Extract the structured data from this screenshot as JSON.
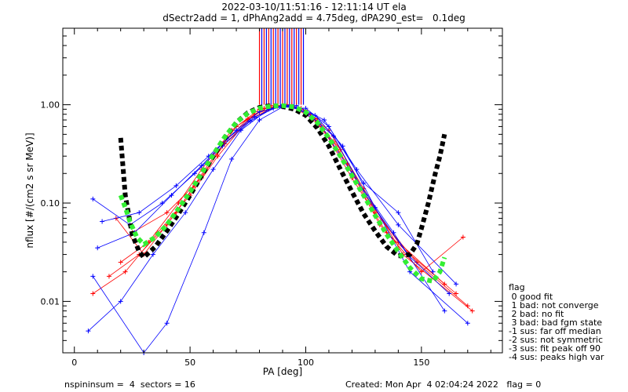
{
  "header": {
    "title_line1": "2022-03-10/11:51:16 - 12:11:14 UT ela",
    "title_line2": "dSectr2add = 1, dPhAng2add = 4.75deg, dPA290_est=   0.1deg"
  },
  "footer": {
    "left": "nspininsum =  4  sectors = 16",
    "right": "Created: Mon Apr  4 02:04:24 2022   flag = 0"
  },
  "legend": {
    "title": "flag",
    "items": [
      " 0 good fit",
      " 1 bad: not converge",
      " 2 bad: no fit",
      " 3 bad: bad fgm state",
      "-1 sus: far off median",
      "-2 sus: not symmetric",
      "-3 sus: fit peak off 90",
      "-4 sus: peaks high var"
    ]
  },
  "chart_data": {
    "type": "line",
    "xlabel": "PA [deg]",
    "ylabel": "nflux [#/(cm2 s sr MeV)]",
    "xlim": [
      -5,
      185
    ],
    "ylim": [
      0.003,
      6
    ],
    "yscale": "log",
    "x_ticks": [
      0,
      50,
      100,
      150
    ],
    "x_tick_labels": [
      "0",
      "50",
      "100",
      "150"
    ],
    "y_ticks": [
      0.01,
      0.1,
      1.0
    ],
    "y_tick_labels": [
      "0.01",
      "0.10",
      "1.00"
    ],
    "series": [
      {
        "color": "#ff0000",
        "style": "thin-line-with-plus",
        "lines": [
          {
            "x": [
              25,
              40,
              55,
              65,
              75,
              85,
              95,
              105,
              120,
              135,
              145,
              165
            ],
            "y": [
              0.05,
              0.08,
              0.18,
              0.42,
              0.72,
              0.98,
              0.95,
              0.72,
              0.18,
              0.05,
              0.03,
              0.012
            ]
          },
          {
            "x": [
              20,
              32,
              45,
              55,
              68,
              80,
              92,
              102,
              115,
              130,
              148,
              170
            ],
            "y": [
              0.025,
              0.04,
              0.1,
              0.22,
              0.55,
              0.9,
              1.0,
              0.8,
              0.35,
              0.08,
              0.025,
              0.009
            ]
          },
          {
            "x": [
              15,
              28,
              40,
              52,
              65,
              78,
              90,
              100,
              112,
              128,
              140,
              160
            ],
            "y": [
              0.018,
              0.03,
              0.06,
              0.15,
              0.4,
              0.8,
              1.0,
              0.88,
              0.42,
              0.1,
              0.04,
              0.015
            ]
          },
          {
            "x": [
              8,
              22,
              36,
              50,
              62,
              75,
              88,
              98,
              110,
              125,
              142,
              172
            ],
            "y": [
              0.012,
              0.02,
              0.05,
              0.12,
              0.3,
              0.7,
              0.98,
              0.92,
              0.55,
              0.14,
              0.03,
              0.008
            ]
          },
          {
            "x": [
              18,
              30,
              44,
              58,
              70,
              82,
              94,
              104,
              118,
              132,
              150,
              168
            ],
            "y": [
              0.07,
              0.03,
              0.08,
              0.25,
              0.6,
              0.92,
              0.96,
              0.7,
              0.25,
              0.06,
              0.02,
              0.045
            ]
          }
        ]
      },
      {
        "color": "#0000ff",
        "style": "thin-line-with-plus",
        "lines": [
          {
            "x": [
              8,
              24,
              38,
              52,
              64,
              76,
              86,
              96,
              108,
              122,
              140,
              165
            ],
            "y": [
              0.11,
              0.06,
              0.1,
              0.2,
              0.38,
              0.68,
              0.92,
              0.98,
              0.7,
              0.22,
              0.06,
              0.015
            ]
          },
          {
            "x": [
              10,
              26,
              42,
              55,
              66,
              78,
              90,
              100,
              112,
              126,
              144,
              162
            ],
            "y": [
              0.035,
              0.05,
              0.12,
              0.24,
              0.45,
              0.75,
              1.0,
              0.85,
              0.48,
              0.12,
              0.03,
              0.012
            ]
          },
          {
            "x": [
              6,
              20,
              34,
              48,
              60,
              72,
              84,
              94,
              106,
              120,
              138,
              160
            ],
            "y": [
              0.005,
              0.01,
              0.03,
              0.08,
              0.22,
              0.55,
              0.9,
              1.0,
              0.65,
              0.2,
              0.05,
              0.008
            ]
          },
          {
            "x": [
              12,
              28,
              44,
              58,
              70,
              80,
              92,
              104,
              116,
              130,
              145,
              170
            ],
            "y": [
              0.065,
              0.08,
              0.15,
              0.3,
              0.55,
              0.85,
              0.99,
              0.78,
              0.38,
              0.09,
              0.02,
              0.006
            ]
          },
          {
            "x": [
              8,
              30,
              40,
              56,
              68,
              80,
              90,
              100,
              110,
              125,
              140,
              155
            ],
            "y": [
              0.018,
              0.003,
              0.006,
              0.05,
              0.28,
              0.7,
              0.95,
              0.92,
              0.6,
              0.16,
              0.08,
              0.02
            ]
          }
        ]
      },
      {
        "color": "#000000",
        "style": "thick-dashed",
        "name": "",
        "x": [
          20,
          22,
          25,
          28,
          30,
          35,
          40,
          45,
          50,
          55,
          60,
          65,
          70,
          75,
          80,
          85,
          90,
          95,
          100,
          105,
          110,
          115,
          120,
          125,
          130,
          135,
          140,
          145,
          148,
          150,
          153,
          156,
          158,
          160
        ],
        "y": [
          0.46,
          0.12,
          0.048,
          0.032,
          0.028,
          0.036,
          0.052,
          0.078,
          0.12,
          0.19,
          0.3,
          0.46,
          0.66,
          0.83,
          0.94,
          0.98,
          0.96,
          0.9,
          0.78,
          0.58,
          0.38,
          0.22,
          0.13,
          0.078,
          0.052,
          0.036,
          0.029,
          0.03,
          0.038,
          0.055,
          0.1,
          0.2,
          0.3,
          0.5
        ]
      },
      {
        "color": "#33ee33",
        "style": "thick-dashed",
        "name": "",
        "x": [
          20,
          22,
          24,
          27,
          30,
          35,
          40,
          45,
          50,
          55,
          60,
          65,
          70,
          75,
          80,
          85,
          90,
          95,
          100,
          105,
          110,
          115,
          120,
          125,
          130,
          135,
          140,
          145,
          150,
          155,
          158,
          160
        ],
        "y": [
          0.12,
          0.09,
          0.065,
          0.045,
          0.038,
          0.045,
          0.06,
          0.088,
          0.13,
          0.2,
          0.31,
          0.47,
          0.66,
          0.82,
          0.92,
          0.97,
          0.98,
          0.95,
          0.84,
          0.66,
          0.46,
          0.3,
          0.19,
          0.12,
          0.075,
          0.048,
          0.032,
          0.022,
          0.017,
          0.016,
          0.02,
          0.028
        ]
      },
      {
        "color": "#ff0000",
        "style": "vertical-lines",
        "x": [
          80,
          82,
          84,
          86,
          88,
          90,
          92,
          94,
          96,
          98
        ],
        "y_top": 6,
        "y_bottom": 1.0
      },
      {
        "color": "#0000ff",
        "style": "vertical-lines",
        "x": [
          81,
          83,
          85,
          87,
          89,
          91,
          93,
          95,
          97,
          99
        ],
        "y_top": 6,
        "y_bottom": 1.0
      }
    ]
  }
}
